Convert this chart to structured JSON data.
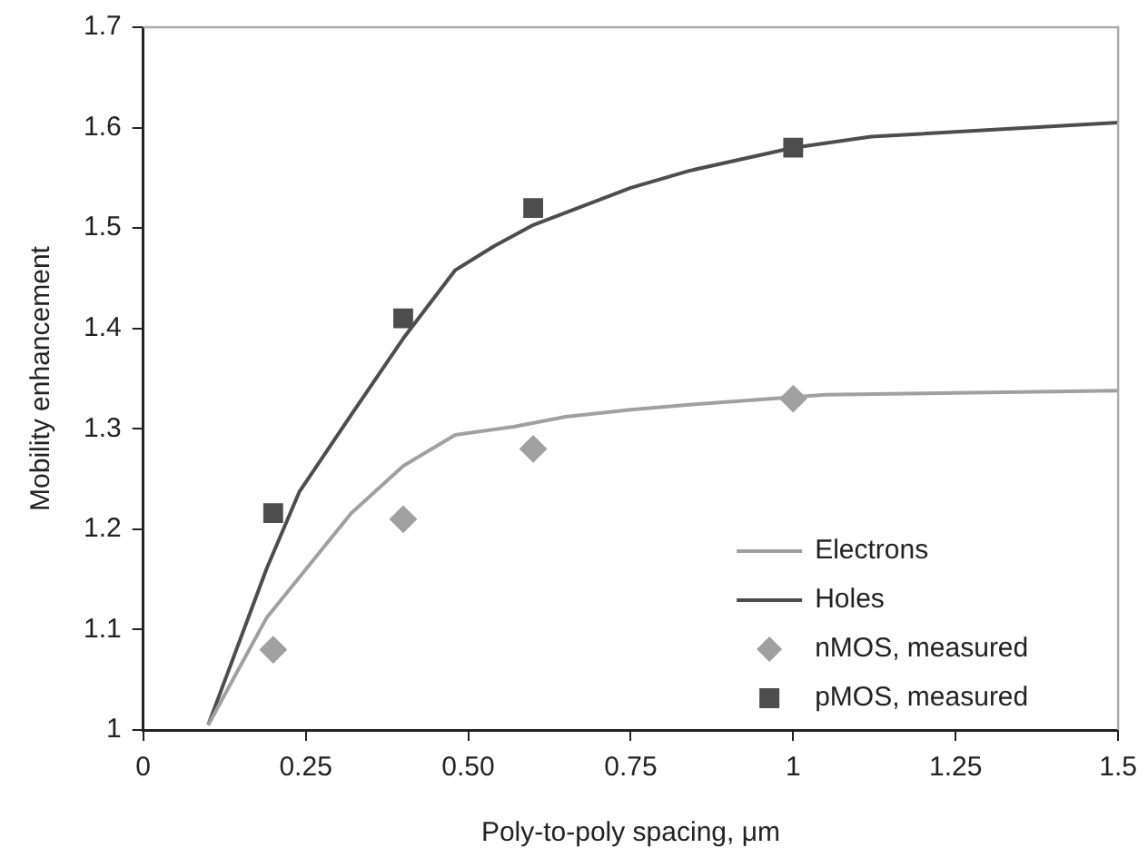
{
  "chart_data": {
    "type": "line",
    "xlabel": "Poly-to-poly spacing, μm",
    "ylabel": "Mobility enhancement",
    "xlim": [
      0,
      1.5
    ],
    "xticks": [
      0,
      0.25,
      {
        "value": 0.5,
        "label": "0.50"
      },
      0.75,
      1,
      1.25,
      1.5
    ],
    "ylim": [
      1,
      1.7
    ],
    "yticks": [
      1,
      1.1,
      1.2,
      1.3,
      1.4,
      1.5,
      1.6,
      1.7
    ],
    "grid": false,
    "legend": "bottom right",
    "series": [
      {
        "name": "Electrons",
        "color": "#a0a0a0",
        "marker": "none",
        "x": [
          0.1,
          0.19,
          0.32,
          0.4,
          0.48,
          0.57,
          0.65,
          0.75,
          0.84,
          1.05,
          1.5
        ],
        "values": [
          1.005,
          1.112,
          1.216,
          1.263,
          1.294,
          1.302,
          1.312,
          1.319,
          1.324,
          1.334,
          1.338
        ]
      },
      {
        "name": "Holes",
        "color": "#4d4d4d",
        "marker": "none",
        "x": [
          0.1,
          0.16,
          0.19,
          0.24,
          0.32,
          0.4,
          0.48,
          0.54,
          0.6,
          0.75,
          0.84,
          1.0,
          1.12,
          1.5
        ],
        "values": [
          1.005,
          1.109,
          1.161,
          1.237,
          1.314,
          1.39,
          1.458,
          1.482,
          1.503,
          1.54,
          1.557,
          1.58,
          1.591,
          1.605
        ]
      },
      {
        "name": "nMOS, measured",
        "type": "scatter",
        "color": "#a0a0a0",
        "marker": "diamond",
        "x": [
          0.2,
          0.4,
          0.6,
          1.0
        ],
        "values": [
          1.08,
          1.21,
          1.28,
          1.33
        ]
      },
      {
        "name": "pMOS, measured",
        "type": "scatter",
        "color": "#4d4d4d",
        "marker": "square",
        "x": [
          0.2,
          0.4,
          0.6,
          1.0
        ],
        "values": [
          1.216,
          1.41,
          1.52,
          1.58
        ]
      }
    ]
  }
}
